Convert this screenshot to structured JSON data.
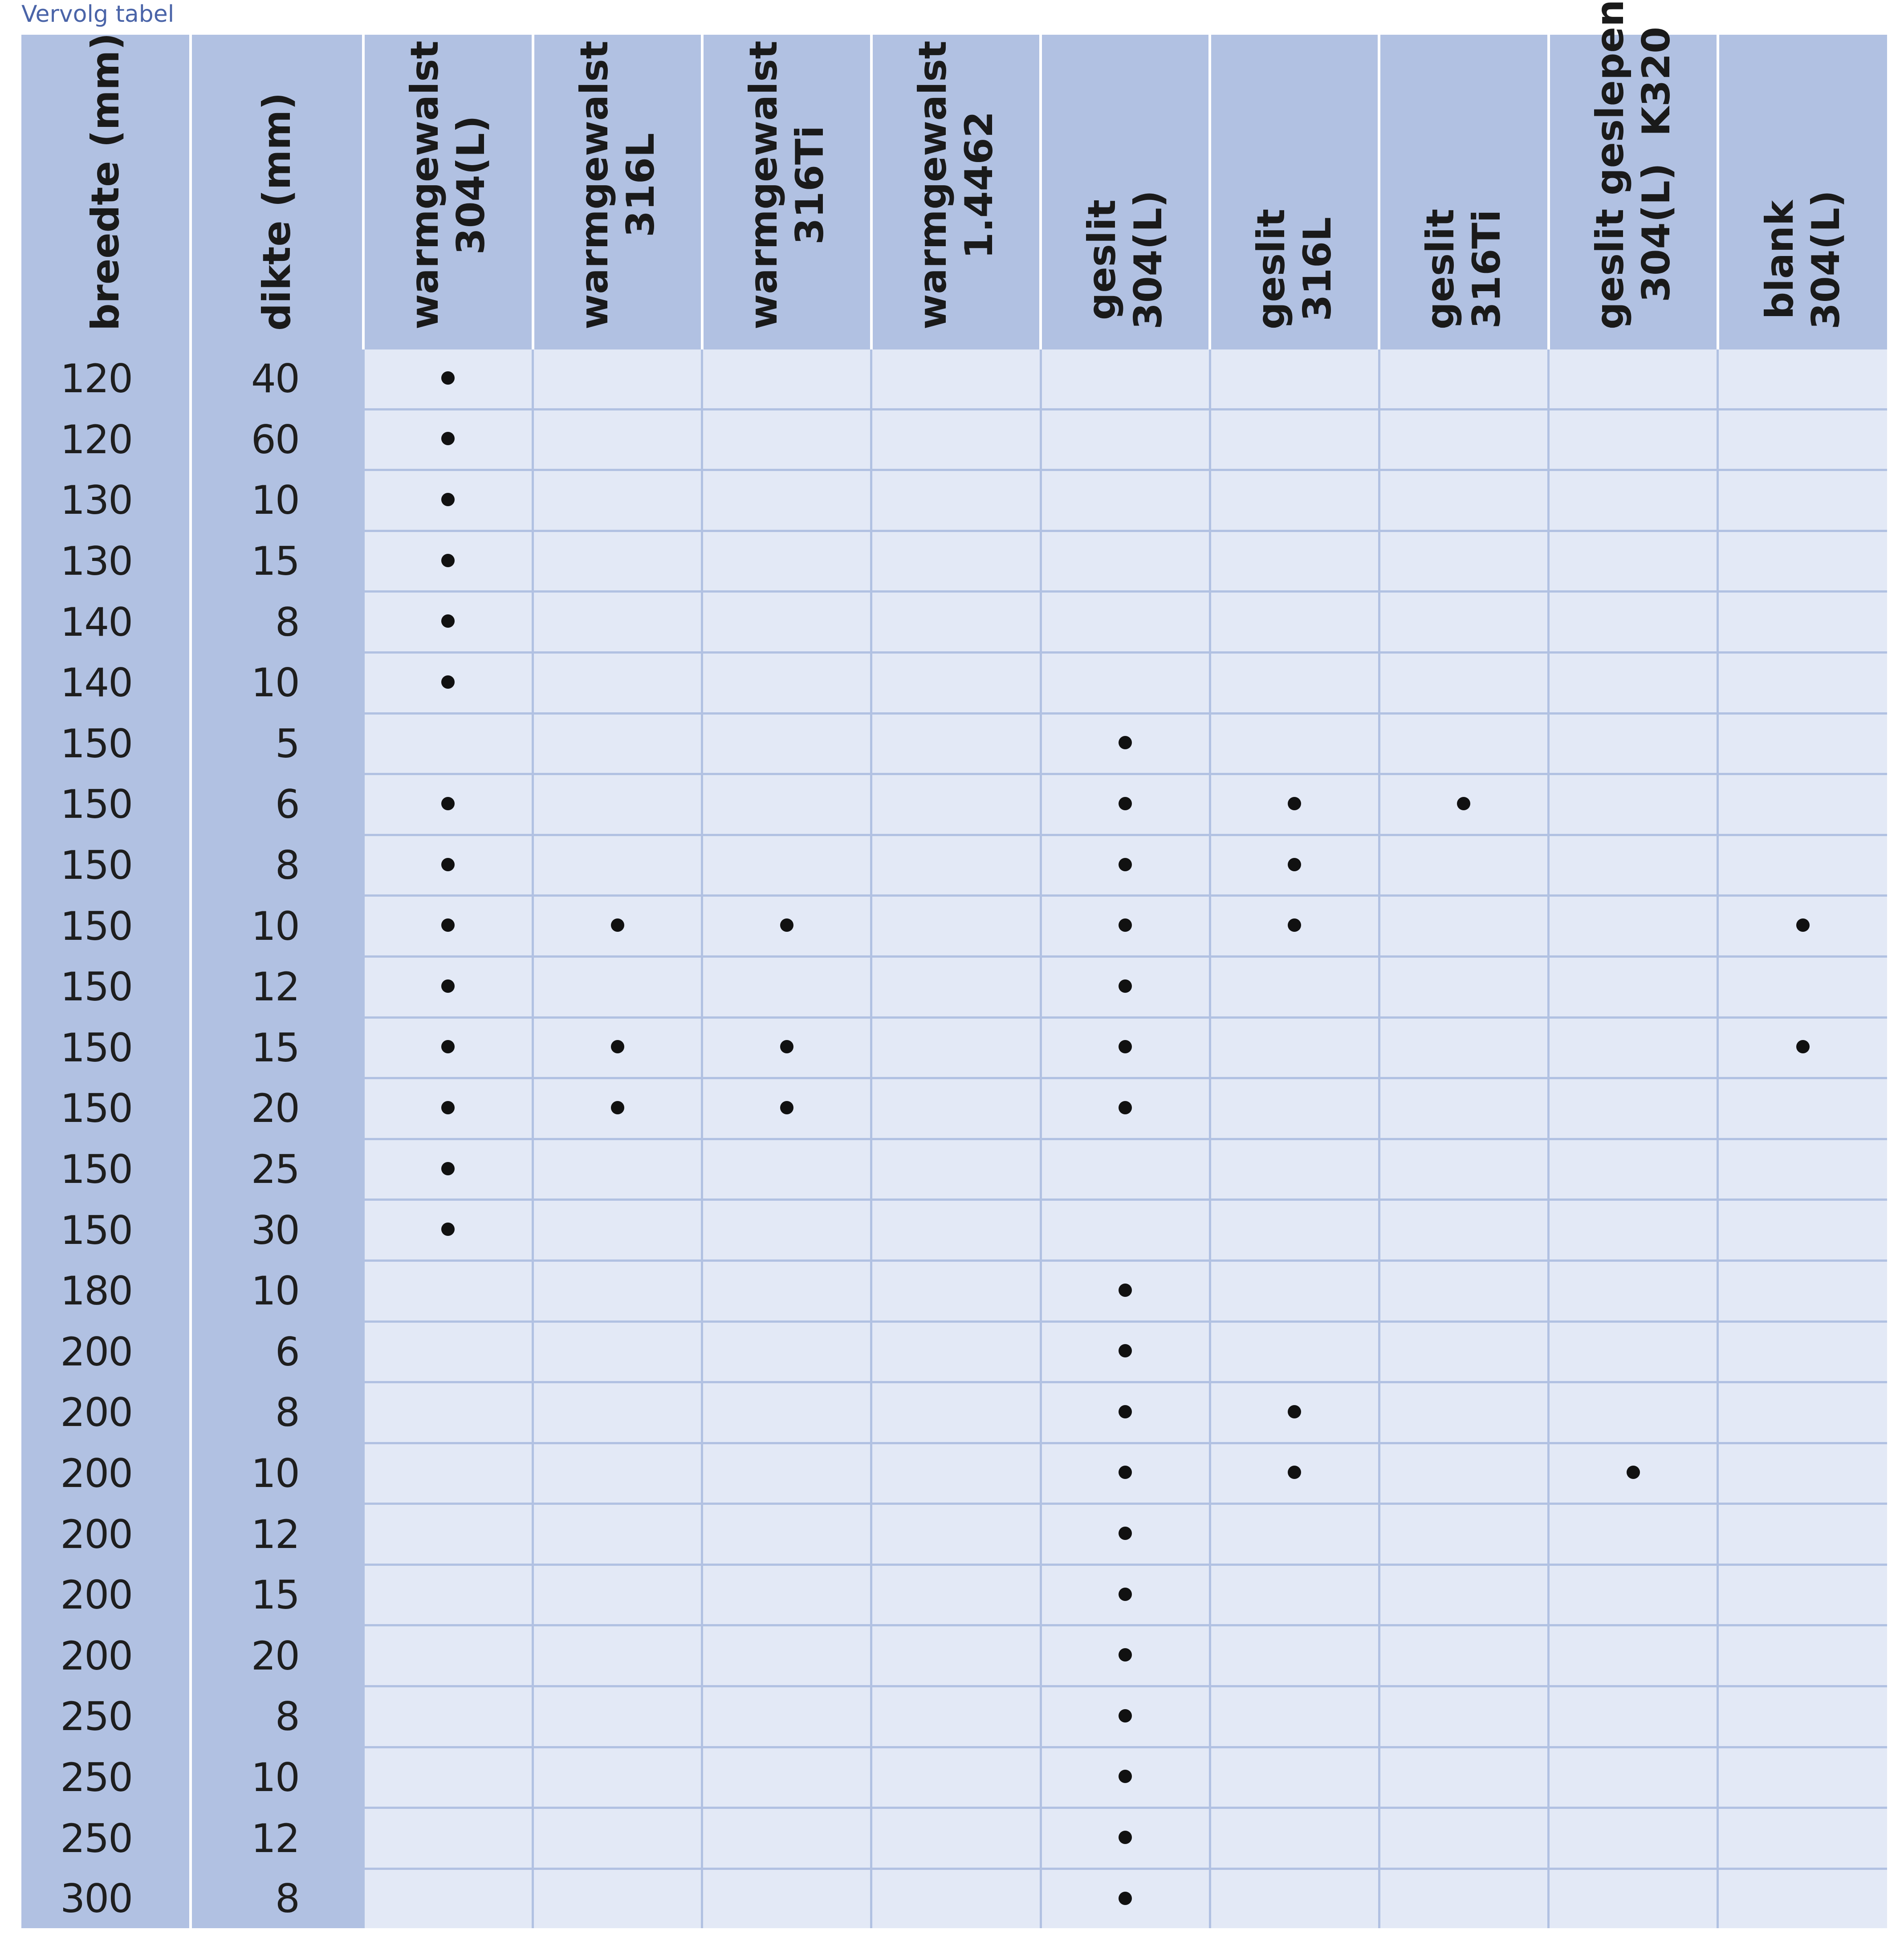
{
  "caption": "Vervolg tabel",
  "columns": [
    {
      "line1": "breedte (mm)",
      "line2": ""
    },
    {
      "line1": "dikte (mm)",
      "line2": ""
    },
    {
      "line1": "warmgewalst",
      "line2": "304(L)"
    },
    {
      "line1": "warmgewalst",
      "line2": "316L"
    },
    {
      "line1": "warmgewalst",
      "line2": "316Ti"
    },
    {
      "line1": "warmgewalst",
      "line2": "1.4462"
    },
    {
      "line1": "geslit",
      "line2": "304(L)"
    },
    {
      "line1": "geslit",
      "line2": "316L"
    },
    {
      "line1": "geslit",
      "line2": "316Ti"
    },
    {
      "line1": "geslit geslepen",
      "line2": "304(L)  K320"
    },
    {
      "line1": "blank",
      "line2": "304(L)"
    }
  ],
  "rows": [
    {
      "breedte": "120",
      "dikte": "40",
      "avail": [
        1,
        0,
        0,
        0,
        0,
        0,
        0,
        0,
        0
      ]
    },
    {
      "breedte": "120",
      "dikte": "60",
      "avail": [
        1,
        0,
        0,
        0,
        0,
        0,
        0,
        0,
        0
      ]
    },
    {
      "breedte": "130",
      "dikte": "10",
      "avail": [
        1,
        0,
        0,
        0,
        0,
        0,
        0,
        0,
        0
      ]
    },
    {
      "breedte": "130",
      "dikte": "15",
      "avail": [
        1,
        0,
        0,
        0,
        0,
        0,
        0,
        0,
        0
      ]
    },
    {
      "breedte": "140",
      "dikte": "8",
      "avail": [
        1,
        0,
        0,
        0,
        0,
        0,
        0,
        0,
        0
      ]
    },
    {
      "breedte": "140",
      "dikte": "10",
      "avail": [
        1,
        0,
        0,
        0,
        0,
        0,
        0,
        0,
        0
      ]
    },
    {
      "breedte": "150",
      "dikte": "5",
      "avail": [
        0,
        0,
        0,
        0,
        1,
        0,
        0,
        0,
        0
      ]
    },
    {
      "breedte": "150",
      "dikte": "6",
      "avail": [
        1,
        0,
        0,
        0,
        1,
        1,
        1,
        0,
        0
      ]
    },
    {
      "breedte": "150",
      "dikte": "8",
      "avail": [
        1,
        0,
        0,
        0,
        1,
        1,
        0,
        0,
        0
      ]
    },
    {
      "breedte": "150",
      "dikte": "10",
      "avail": [
        1,
        1,
        1,
        0,
        1,
        1,
        0,
        0,
        1
      ]
    },
    {
      "breedte": "150",
      "dikte": "12",
      "avail": [
        1,
        0,
        0,
        0,
        1,
        0,
        0,
        0,
        0
      ]
    },
    {
      "breedte": "150",
      "dikte": "15",
      "avail": [
        1,
        1,
        1,
        0,
        1,
        0,
        0,
        0,
        1
      ]
    },
    {
      "breedte": "150",
      "dikte": "20",
      "avail": [
        1,
        1,
        1,
        0,
        1,
        0,
        0,
        0,
        0
      ]
    },
    {
      "breedte": "150",
      "dikte": "25",
      "avail": [
        1,
        0,
        0,
        0,
        0,
        0,
        0,
        0,
        0
      ]
    },
    {
      "breedte": "150",
      "dikte": "30",
      "avail": [
        1,
        0,
        0,
        0,
        0,
        0,
        0,
        0,
        0
      ]
    },
    {
      "breedte": "180",
      "dikte": "10",
      "avail": [
        0,
        0,
        0,
        0,
        1,
        0,
        0,
        0,
        0
      ]
    },
    {
      "breedte": "200",
      "dikte": "6",
      "avail": [
        0,
        0,
        0,
        0,
        1,
        0,
        0,
        0,
        0
      ]
    },
    {
      "breedte": "200",
      "dikte": "8",
      "avail": [
        0,
        0,
        0,
        0,
        1,
        1,
        0,
        0,
        0
      ]
    },
    {
      "breedte": "200",
      "dikte": "10",
      "avail": [
        0,
        0,
        0,
        0,
        1,
        1,
        0,
        1,
        0
      ]
    },
    {
      "breedte": "200",
      "dikte": "12",
      "avail": [
        0,
        0,
        0,
        0,
        1,
        0,
        0,
        0,
        0
      ]
    },
    {
      "breedte": "200",
      "dikte": "15",
      "avail": [
        0,
        0,
        0,
        0,
        1,
        0,
        0,
        0,
        0
      ]
    },
    {
      "breedte": "200",
      "dikte": "20",
      "avail": [
        0,
        0,
        0,
        0,
        1,
        0,
        0,
        0,
        0
      ]
    },
    {
      "breedte": "250",
      "dikte": "8",
      "avail": [
        0,
        0,
        0,
        0,
        1,
        0,
        0,
        0,
        0
      ]
    },
    {
      "breedte": "250",
      "dikte": "10",
      "avail": [
        0,
        0,
        0,
        0,
        1,
        0,
        0,
        0,
        0
      ]
    },
    {
      "breedte": "250",
      "dikte": "12",
      "avail": [
        0,
        0,
        0,
        0,
        1,
        0,
        0,
        0,
        0
      ]
    },
    {
      "breedte": "300",
      "dikte": "8",
      "avail": [
        0,
        0,
        0,
        0,
        1,
        0,
        0,
        0,
        0
      ]
    }
  ]
}
